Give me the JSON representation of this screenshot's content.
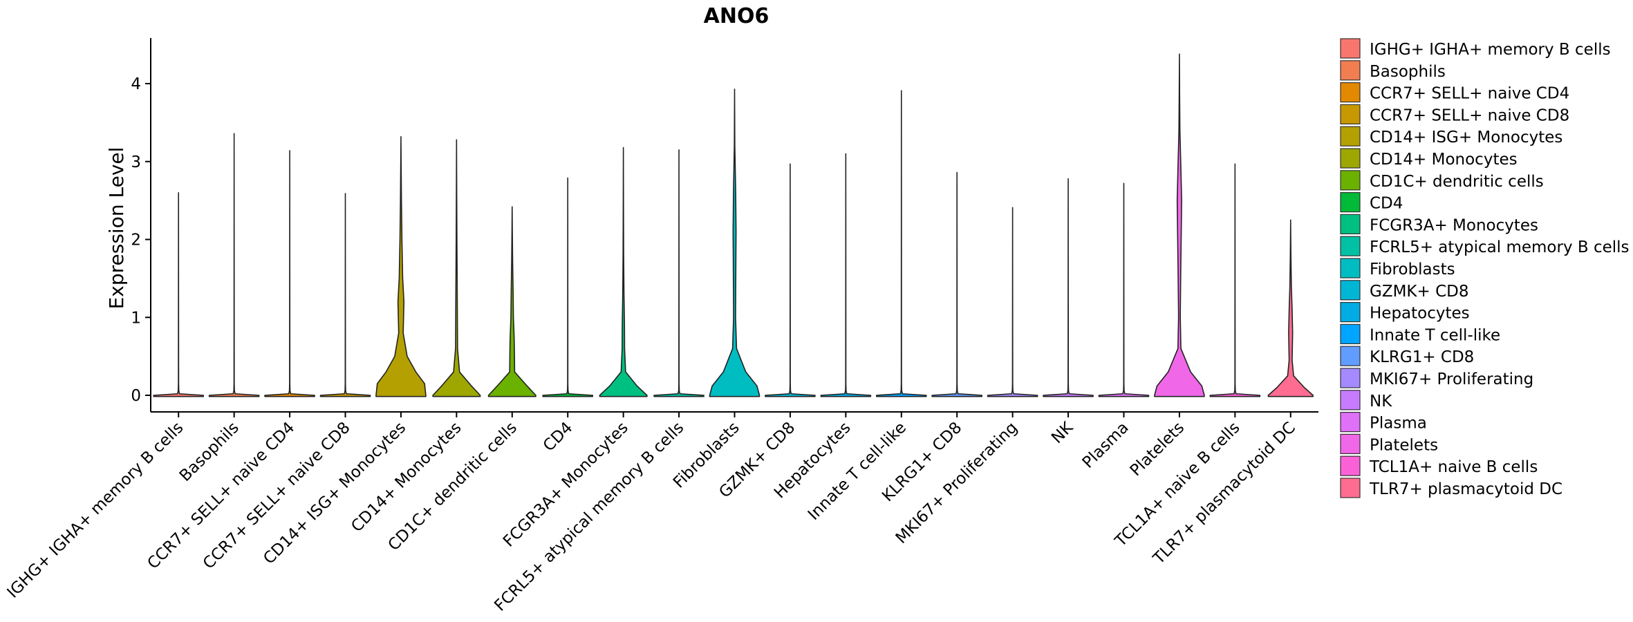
{
  "chart_data": {
    "type": "violin",
    "title": "ANO6",
    "xlabel": "",
    "ylabel": "Expression Level",
    "ylim": [
      -0.22,
      4.6
    ],
    "yticks": [
      0,
      1,
      2,
      3,
      4
    ],
    "grid": false,
    "legend_position": "right",
    "categories": [
      "IGHG+ IGHA+ memory B cells",
      "Basophils",
      "CCR7+ SELL+ naive CD4",
      "CCR7+ SELL+ naive CD8",
      "CD14+ ISG+ Monocytes",
      "CD14+ Monocytes",
      "CD1C+ dendritic cells",
      "CD4",
      "FCGR3A+ Monocytes",
      "FCRL5+ atypical memory B cells",
      "Fibroblasts",
      "GZMK+ CD8",
      "Hepatocytes",
      "Innate T cell-like",
      "KLRG1+ CD8",
      "MKI67+ Proliferating",
      "NK",
      "Plasma",
      "Platelets",
      "TCL1A+ naive B cells",
      "TLR7+ plasmacytoid DC"
    ],
    "legend": [
      " IGHG+ IGHA+ memory B cells",
      "Basophils",
      "CCR7+ SELL+ naive CD4",
      "CCR7+ SELL+ naive CD8",
      "CD14+ ISG+ Monocytes",
      "CD14+ Monocytes",
      "CD1C+ dendritic cells",
      "CD4",
      "FCGR3A+ Monocytes",
      "FCRL5+ atypical memory B cells",
      "Fibroblasts",
      "GZMK+ CD8",
      "Hepatocytes",
      "Innate T cell-like",
      "KLRG1+ CD8",
      "MKI67+ Proliferating",
      "NK",
      "Plasma",
      "Platelets",
      "TCL1A+ naive B cells",
      "TLR7+ plasmacytoid DC"
    ],
    "colors": [
      "#F8766D",
      "#F07E50",
      "#E38900",
      "#C79800",
      "#B4A000",
      "#9DA700",
      "#6BB100",
      "#00BA38",
      "#00C081",
      "#00C1A3",
      "#00BDC2",
      "#00B6D5",
      "#00ACE3",
      "#00A5FF",
      "#619CFF",
      "#A58AFF",
      "#C77CFF",
      "#DF70F8",
      "#F067E8",
      "#FB61D7",
      "#FF6C91"
    ],
    "series": [
      {
        "name": "IGHG+ IGHA+ memory B cells",
        "max": 2.6,
        "profile": []
      },
      {
        "name": "Basophils",
        "max": 3.36,
        "profile": []
      },
      {
        "name": "CCR7+ SELL+ naive CD4",
        "max": 3.14,
        "profile": []
      },
      {
        "name": "CCR7+ SELL+ naive CD8",
        "max": 2.59,
        "profile": []
      },
      {
        "name": "CD14+ ISG+ Monocytes",
        "max": 3.32,
        "profile": [
          [
            0,
            1.0
          ],
          [
            0.15,
            0.95
          ],
          [
            0.3,
            0.6
          ],
          [
            0.5,
            0.25
          ],
          [
            0.8,
            0.09
          ],
          [
            1.2,
            0.12
          ],
          [
            1.5,
            0.07
          ],
          [
            2.0,
            0.04
          ],
          [
            2.5,
            0.02
          ],
          [
            3.0,
            0.007
          ]
        ]
      },
      {
        "name": "CD14+ Monocytes",
        "max": 3.28,
        "profile": [
          [
            0,
            0.95
          ],
          [
            0.12,
            0.6
          ],
          [
            0.3,
            0.12
          ],
          [
            0.6,
            0.04
          ],
          [
            1.2,
            0.03
          ],
          [
            2.0,
            0.015
          ],
          [
            2.7,
            0.006
          ]
        ]
      },
      {
        "name": "CD1C+ dendritic cells",
        "max": 2.42,
        "profile": [
          [
            0,
            0.95
          ],
          [
            0.12,
            0.6
          ],
          [
            0.3,
            0.1
          ],
          [
            0.6,
            0.09
          ],
          [
            0.75,
            0.08
          ],
          [
            1.0,
            0.05
          ],
          [
            1.3,
            0.04
          ],
          [
            1.7,
            0.02
          ],
          [
            2.1,
            0.008
          ]
        ]
      },
      {
        "name": "CD4",
        "max": 2.79,
        "profile": []
      },
      {
        "name": "FCGR3A+ Monocytes",
        "max": 3.18,
        "profile": [
          [
            0,
            0.95
          ],
          [
            0.12,
            0.55
          ],
          [
            0.3,
            0.09
          ],
          [
            0.6,
            0.05
          ],
          [
            0.9,
            0.045
          ],
          [
            1.3,
            0.025
          ],
          [
            1.8,
            0.012
          ],
          [
            2.5,
            0.005
          ]
        ]
      },
      {
        "name": "FCRL5+ atypical memory B cells",
        "max": 3.15,
        "profile": []
      },
      {
        "name": "Fibroblasts",
        "max": 3.93,
        "profile": [
          [
            0,
            1.0
          ],
          [
            0.12,
            0.9
          ],
          [
            0.3,
            0.45
          ],
          [
            0.6,
            0.08
          ],
          [
            1.0,
            0.04
          ],
          [
            1.6,
            0.05
          ],
          [
            2.1,
            0.06
          ],
          [
            2.6,
            0.045
          ],
          [
            3.2,
            0.01
          ]
        ]
      },
      {
        "name": "GZMK+ CD8",
        "max": 2.97,
        "profile": []
      },
      {
        "name": "Hepatocytes",
        "max": 3.1,
        "profile": []
      },
      {
        "name": "Innate T cell-like",
        "max": 3.91,
        "profile": []
      },
      {
        "name": "KLRG1+ CD8",
        "max": 2.86,
        "profile": []
      },
      {
        "name": "MKI67+ Proliferating",
        "max": 2.41,
        "profile": []
      },
      {
        "name": "NK",
        "max": 2.78,
        "profile": []
      },
      {
        "name": "Plasma",
        "max": 2.72,
        "profile": []
      },
      {
        "name": "Platelets",
        "max": 4.38,
        "profile": [
          [
            0,
            1.0
          ],
          [
            0.12,
            0.9
          ],
          [
            0.3,
            0.45
          ],
          [
            0.6,
            0.06
          ],
          [
            1.0,
            0.035
          ],
          [
            1.5,
            0.05
          ],
          [
            2.0,
            0.07
          ],
          [
            2.5,
            0.09
          ],
          [
            2.9,
            0.06
          ],
          [
            3.4,
            0.02
          ],
          [
            3.9,
            0.008
          ]
        ]
      },
      {
        "name": "TCL1A+ naive B cells",
        "max": 2.97,
        "profile": []
      },
      {
        "name": "TLR7+ plasmacytoid DC",
        "max": 2.25,
        "profile": [
          [
            0,
            0.9
          ],
          [
            0.1,
            0.55
          ],
          [
            0.25,
            0.12
          ],
          [
            0.45,
            0.06
          ],
          [
            0.8,
            0.08
          ],
          [
            1.1,
            0.06
          ],
          [
            1.4,
            0.03
          ],
          [
            1.8,
            0.012
          ],
          [
            2.1,
            0.004
          ]
        ]
      }
    ]
  }
}
